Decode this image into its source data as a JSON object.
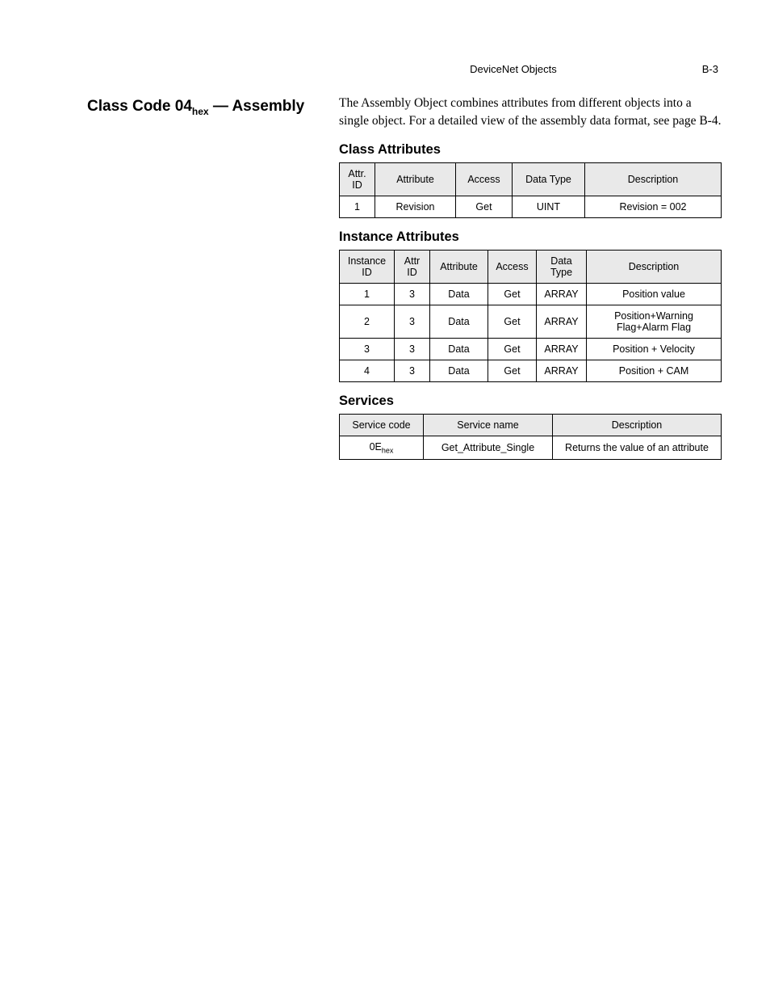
{
  "header": {
    "title": "DeviceNet Objects",
    "pagenum": "B-3"
  },
  "section": {
    "title_prefix": "Class Code 04",
    "title_sub": "hex",
    "title_suffix": " — Assembly"
  },
  "intro": {
    "text": "The Assembly Object combines attributes from different objects into a single object. For a detailed view of the assembly data format, see page B-4."
  },
  "class_attributes": {
    "heading": "Class Attributes",
    "columns": [
      "Attr. ID",
      "Attribute",
      "Access",
      "Data Type",
      "Description"
    ],
    "col_widths": [
      "44px",
      "100px",
      "70px",
      "90px",
      "auto"
    ],
    "rows": [
      [
        "1",
        "Revision",
        "Get",
        "UINT",
        "Revision = 002"
      ]
    ]
  },
  "instance_attributes": {
    "heading": "Instance Attributes",
    "columns": [
      "Instance ID",
      "Attr ID",
      "Attribute",
      "Access",
      "Data Type",
      "Description"
    ],
    "col_widths": [
      "68px",
      "44px",
      "72px",
      "60px",
      "62px",
      "auto"
    ],
    "rows": [
      [
        "1",
        "3",
        "Data",
        "Get",
        "ARRAY",
        "Position value"
      ],
      [
        "2",
        "3",
        "Data",
        "Get",
        "ARRAY",
        "Position+Warning Flag+Alarm Flag"
      ],
      [
        "3",
        "3",
        "Data",
        "Get",
        "ARRAY",
        "Position + Velocity"
      ],
      [
        "4",
        "3",
        "Data",
        "Get",
        "ARRAY",
        "Position + CAM"
      ]
    ]
  },
  "services": {
    "heading": "Services",
    "columns": [
      "Service code",
      "Service name",
      "Description"
    ],
    "col_widths": [
      "104px",
      "160px",
      "auto"
    ],
    "row0": {
      "code_main": "0E",
      "code_sub": "hex",
      "name": "Get_Attribute_Single",
      "desc": "Returns the value of an attribute"
    }
  }
}
